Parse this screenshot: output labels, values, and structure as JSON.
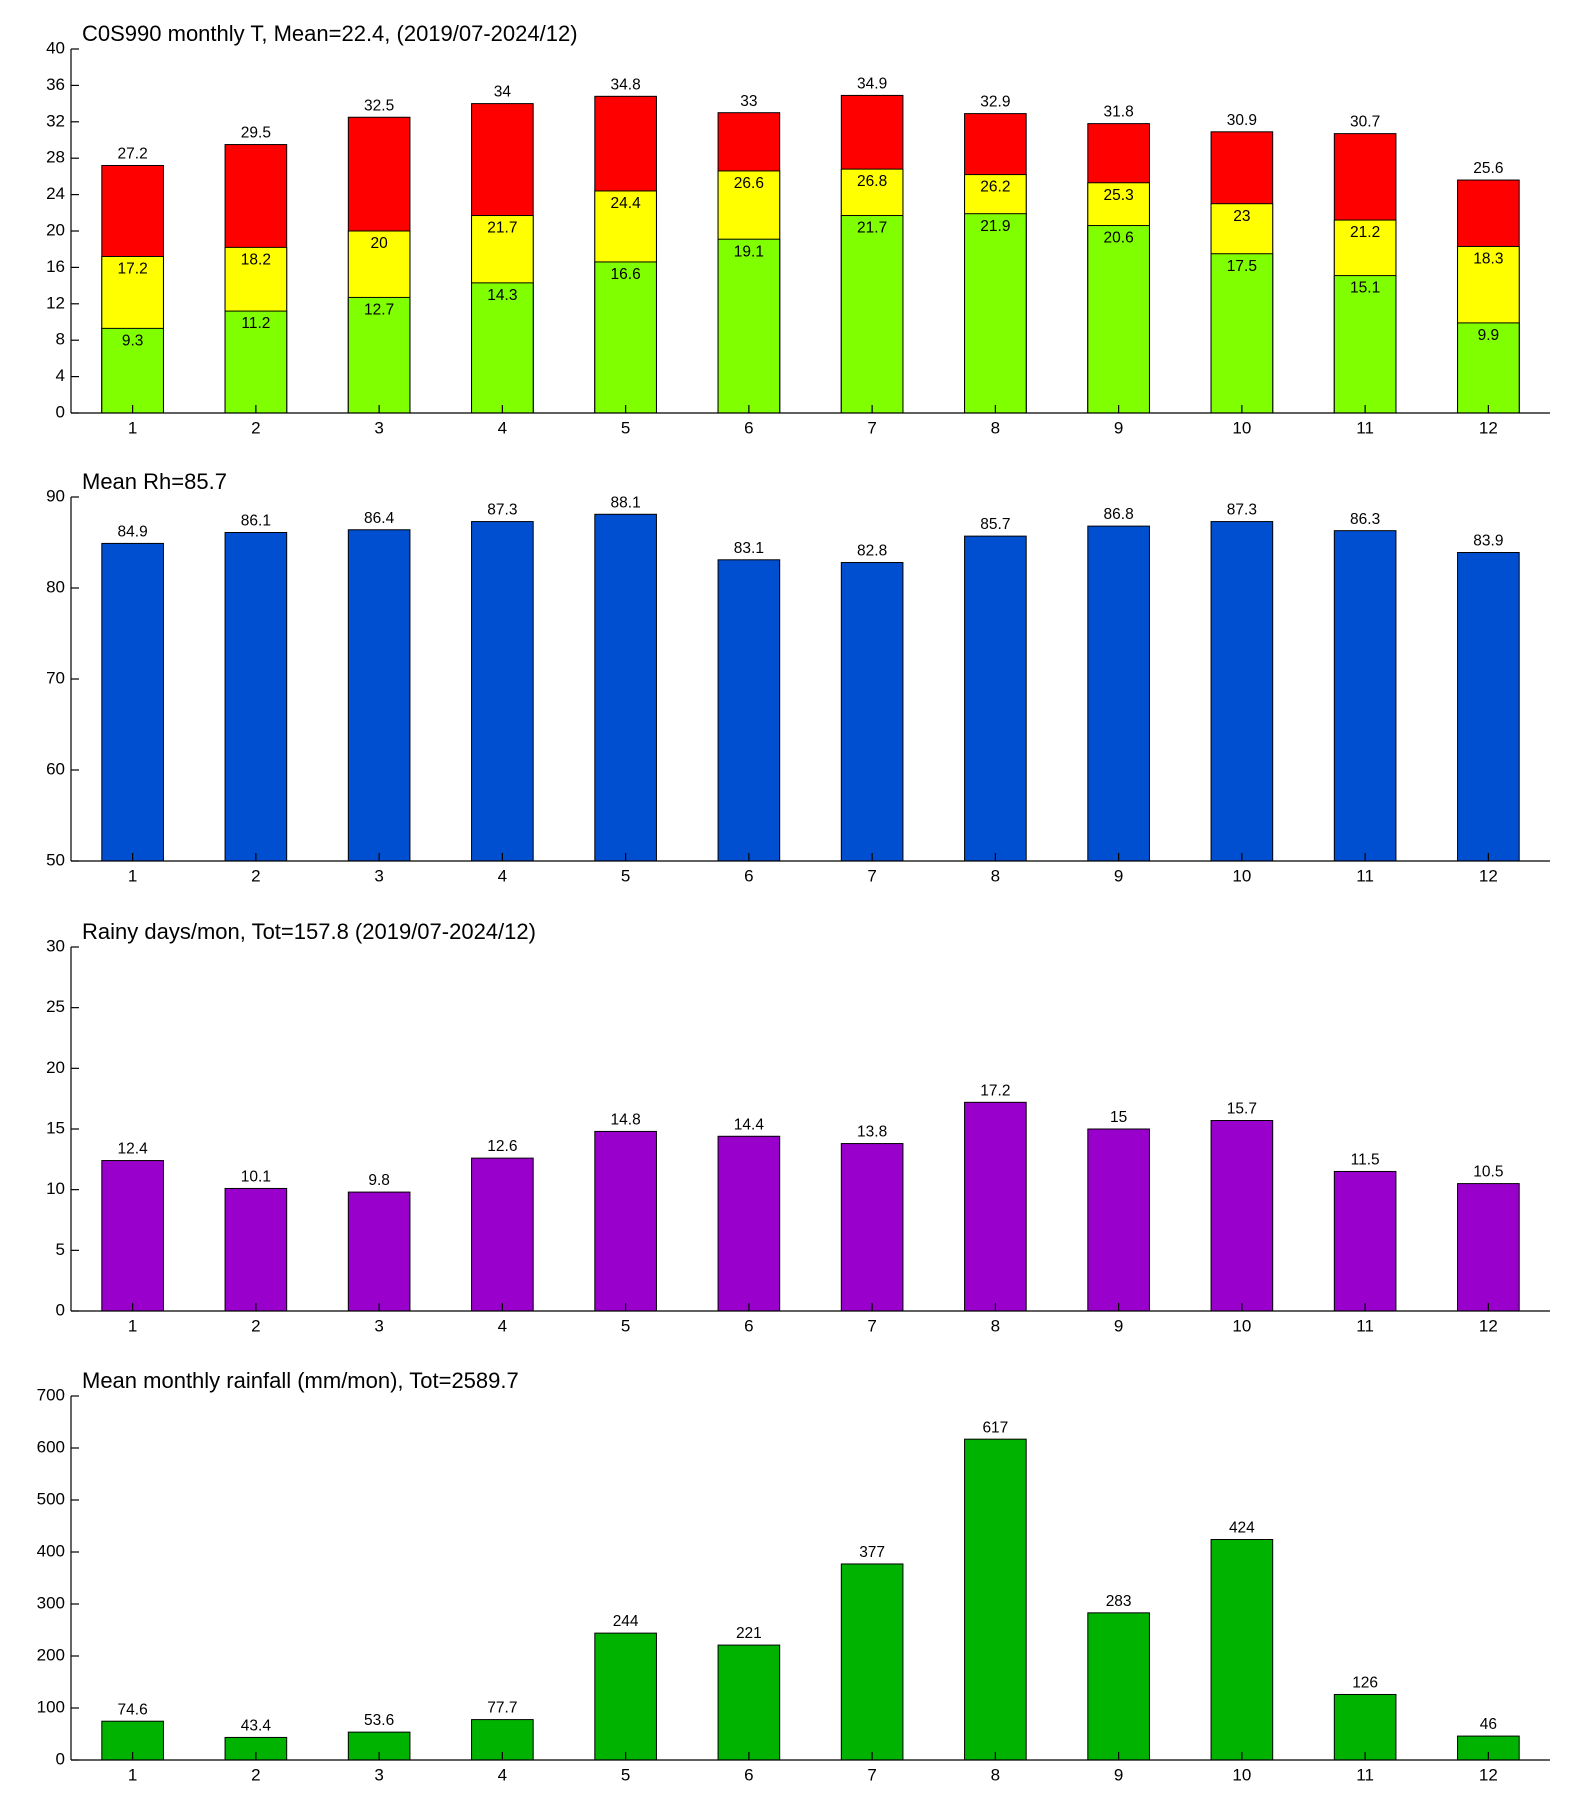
{
  "chart_data": [
    {
      "type": "bar",
      "title": "C0S990 monthly T, Mean=22.4, (2019/07-2024/12)",
      "categories": [
        "1",
        "2",
        "3",
        "4",
        "5",
        "6",
        "7",
        "8",
        "9",
        "10",
        "11",
        "12"
      ],
      "series": [
        {
          "color": "#ff0000",
          "values": [
            27.2,
            29.5,
            32.5,
            34,
            34.8,
            33,
            34.9,
            32.9,
            31.8,
            30.9,
            30.7,
            25.6
          ]
        },
        {
          "color": "#ffff00",
          "values": [
            17.2,
            18.2,
            20,
            21.7,
            24.4,
            26.6,
            26.8,
            26.2,
            25.3,
            23,
            21.2,
            18.3
          ]
        },
        {
          "color": "#80ff00",
          "values": [
            9.3,
            11.2,
            12.7,
            14.3,
            16.6,
            19.1,
            21.7,
            21.9,
            20.6,
            17.5,
            15.1,
            9.9
          ]
        }
      ],
      "ylim": [
        0,
        40
      ],
      "yticks": [
        0,
        4,
        8,
        12,
        16,
        20,
        24,
        28,
        32,
        36,
        40
      ]
    },
    {
      "type": "bar",
      "title": "Mean Rh=85.7",
      "categories": [
        "1",
        "2",
        "3",
        "4",
        "5",
        "6",
        "7",
        "8",
        "9",
        "10",
        "11",
        "12"
      ],
      "series": [
        {
          "color": "#004fd0",
          "values": [
            84.9,
            86.1,
            86.4,
            87.3,
            88.1,
            83.1,
            82.8,
            85.7,
            86.8,
            87.3,
            86.3,
            83.9
          ]
        }
      ],
      "ylim": [
        50,
        90
      ],
      "yticks": [
        50,
        60,
        70,
        80,
        90
      ]
    },
    {
      "type": "bar",
      "title": "Rainy days/mon, Tot=157.8 (2019/07-2024/12)",
      "categories": [
        "1",
        "2",
        "3",
        "4",
        "5",
        "6",
        "7",
        "8",
        "9",
        "10",
        "11",
        "12"
      ],
      "series": [
        {
          "color": "#9900cc",
          "values": [
            12.4,
            10.1,
            9.8,
            12.6,
            14.8,
            14.4,
            13.8,
            17.2,
            15,
            15.7,
            11.5,
            10.5
          ]
        }
      ],
      "ylim": [
        0,
        30
      ],
      "yticks": [
        0,
        5,
        10,
        15,
        20,
        25,
        30
      ]
    },
    {
      "type": "bar",
      "title": "Mean monthly rainfall (mm/mon), Tot=2589.7",
      "categories": [
        "1",
        "2",
        "3",
        "4",
        "5",
        "6",
        "7",
        "8",
        "9",
        "10",
        "11",
        "12"
      ],
      "series": [
        {
          "color": "#00b300",
          "values": [
            74.6,
            43.4,
            53.6,
            77.7,
            244,
            221,
            377,
            617,
            283,
            424,
            126,
            46
          ]
        }
      ],
      "ylim": [
        0,
        700
      ],
      "yticks": [
        0,
        100,
        200,
        300,
        400,
        500,
        600,
        700
      ]
    }
  ]
}
